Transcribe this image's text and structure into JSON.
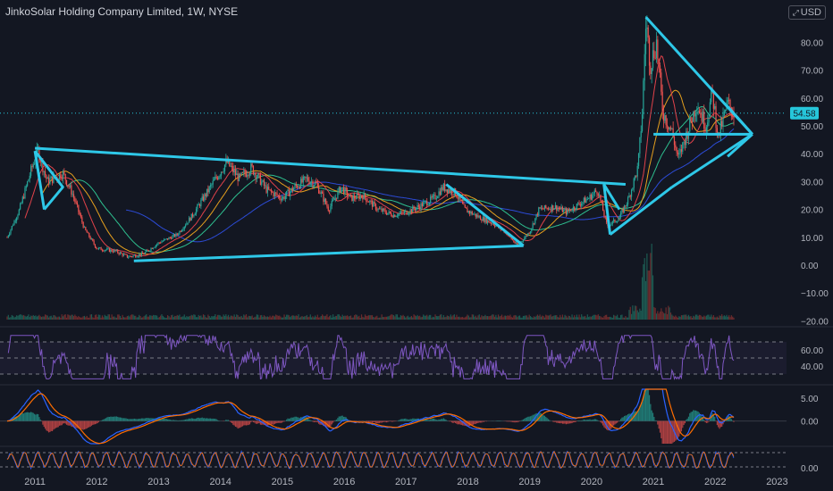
{
  "header": {
    "title": "JinkoSolar Holding Company Limited, 1W, NYSE",
    "currency": "USD",
    "currency_icon": "expand-icon"
  },
  "colors": {
    "background": "#131722",
    "candle_up": "#26a69a",
    "candle_down": "#ef5350",
    "trendline": "#2ec8e8",
    "ma_fast": "#e0424a",
    "ma_mid": "#e6a01e",
    "ma_slow": "#2ebf8f",
    "ma_long": "#2c4bd6",
    "rsi": "#7e57c2",
    "macd": "#2962ff",
    "signal": "#ff6d00",
    "price_label": "#26c6da"
  },
  "chart_data": {
    "type": "candlestick",
    "title": "JinkoSolar Holding Company Limited, 1W, NYSE",
    "last_price": "54.58",
    "x_ticks": [
      "2011",
      "2012",
      "2013",
      "2014",
      "2015",
      "2016",
      "2017",
      "2018",
      "2019",
      "2020",
      "2021",
      "2022",
      "2023"
    ],
    "price_axis": {
      "ticks": [
        "80.00",
        "70.00",
        "60.00",
        "50.00",
        "40.00",
        "30.00",
        "20.00",
        "10.00",
        "0.00",
        "−10.00",
        "−20.00"
      ],
      "ylim": [
        -20,
        90
      ]
    },
    "price_anchors": [
      [
        2010.55,
        10
      ],
      [
        2010.75,
        20
      ],
      [
        2010.95,
        35
      ],
      [
        2011.05,
        41
      ],
      [
        2011.2,
        30
      ],
      [
        2011.45,
        33
      ],
      [
        2011.6,
        26
      ],
      [
        2011.8,
        13
      ],
      [
        2012.0,
        6
      ],
      [
        2012.3,
        5
      ],
      [
        2012.5,
        3
      ],
      [
        2012.75,
        4
      ],
      [
        2013.0,
        8
      ],
      [
        2013.3,
        11
      ],
      [
        2013.55,
        18
      ],
      [
        2013.75,
        25
      ],
      [
        2013.95,
        32
      ],
      [
        2014.1,
        37
      ],
      [
        2014.3,
        31
      ],
      [
        2014.5,
        35
      ],
      [
        2014.75,
        27
      ],
      [
        2015.0,
        24
      ],
      [
        2015.2,
        28
      ],
      [
        2015.4,
        31
      ],
      [
        2015.55,
        29
      ],
      [
        2015.75,
        20
      ],
      [
        2015.95,
        28
      ],
      [
        2016.1,
        24
      ],
      [
        2016.3,
        25
      ],
      [
        2016.55,
        20
      ],
      [
        2016.8,
        18
      ],
      [
        2017.0,
        19
      ],
      [
        2017.2,
        21
      ],
      [
        2017.45,
        24
      ],
      [
        2017.6,
        28
      ],
      [
        2017.8,
        26
      ],
      [
        2017.95,
        20
      ],
      [
        2018.2,
        17
      ],
      [
        2018.4,
        15
      ],
      [
        2018.6,
        12
      ],
      [
        2018.8,
        7
      ],
      [
        2019.0,
        12
      ],
      [
        2019.15,
        20
      ],
      [
        2019.4,
        21
      ],
      [
        2019.6,
        19
      ],
      [
        2019.8,
        22
      ],
      [
        2019.95,
        24
      ],
      [
        2020.1,
        27
      ],
      [
        2020.25,
        14
      ],
      [
        2020.45,
        17
      ],
      [
        2020.6,
        24
      ],
      [
        2020.75,
        35
      ],
      [
        2020.82,
        55
      ],
      [
        2020.88,
        88
      ],
      [
        2020.95,
        72
      ],
      [
        2021.05,
        80
      ],
      [
        2021.15,
        55
      ],
      [
        2021.3,
        48
      ],
      [
        2021.4,
        38
      ],
      [
        2021.55,
        48
      ],
      [
        2021.7,
        58
      ],
      [
        2021.85,
        50
      ],
      [
        2021.95,
        62
      ],
      [
        2022.05,
        46
      ],
      [
        2022.2,
        58
      ],
      [
        2022.3,
        54.6
      ]
    ],
    "trendlines": [
      [
        [
          2011.0,
          42
        ],
        [
          2020.55,
          29
        ]
      ],
      [
        [
          2011.0,
          41
        ],
        [
          2011.45,
          28
        ],
        [
          2011.15,
          20
        ]
      ],
      [
        [
          2011.0,
          41
        ],
        [
          2011.15,
          20
        ]
      ],
      [
        [
          2012.6,
          1.5
        ],
        [
          2018.9,
          7
        ]
      ],
      [
        [
          2017.65,
          29
        ],
        [
          2018.9,
          7
        ]
      ],
      [
        [
          2020.2,
          29
        ],
        [
          2020.45,
          20
        ]
      ],
      [
        [
          2020.2,
          29
        ],
        [
          2020.3,
          11
        ]
      ],
      [
        [
          2020.3,
          11
        ],
        [
          2021.3,
          28
        ]
      ],
      [
        [
          2021.3,
          28
        ],
        [
          2022.6,
          47
        ]
      ],
      [
        [
          2020.88,
          89
        ],
        [
          2022.6,
          47
        ]
      ],
      [
        [
          2021.0,
          47
        ],
        [
          2022.6,
          47
        ]
      ],
      [
        [
          2022.2,
          57
        ],
        [
          2022.6,
          47
        ]
      ],
      [
        [
          2022.2,
          39
        ],
        [
          2022.6,
          47
        ]
      ]
    ],
    "rsi": {
      "ticks": [
        "60.00",
        "40.00"
      ],
      "levels": [
        70,
        50,
        30
      ],
      "range": [
        20,
        80
      ]
    },
    "macd": {
      "ticks": [
        "5.00",
        "0.00"
      ],
      "range": [
        -5,
        7
      ]
    },
    "stoch": {
      "ticks": [
        "0.00"
      ]
    },
    "grid": false,
    "legend": "none"
  }
}
